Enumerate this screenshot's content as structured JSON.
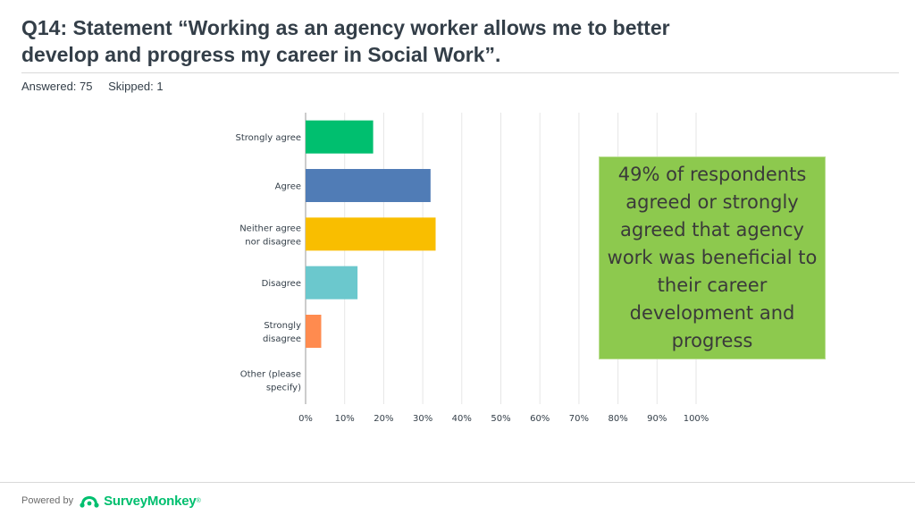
{
  "header": {
    "title_line1": "Q14: Statement “Working as an agency worker allows me to better",
    "title_line2": "develop and progress my career in Social Work”.",
    "answered": "Answered: 75",
    "skipped": "Skipped: 1"
  },
  "chart_data": {
    "type": "bar",
    "orientation": "horizontal",
    "categories": [
      [
        "Strongly agree"
      ],
      [
        "Agree"
      ],
      [
        "Neither agree",
        "nor disagree"
      ],
      [
        "Disagree"
      ],
      [
        "Strongly",
        "disagree"
      ],
      [
        "Other (please",
        "specify)"
      ]
    ],
    "values": [
      17.3,
      32,
      33.3,
      13.3,
      4,
      0
    ],
    "colors": [
      "#00bf6f",
      "#507cb6",
      "#f9be00",
      "#6bc8cd",
      "#ff8b4f",
      "#7d5e90"
    ],
    "x_ticks": [
      "0%",
      "10%",
      "20%",
      "30%",
      "40%",
      "50%",
      "60%",
      "70%",
      "80%",
      "90%",
      "100%"
    ],
    "xlim": [
      0,
      100
    ],
    "grid": true
  },
  "callout": {
    "text": "49% of respondents agreed or strongly agreed that agency work was beneficial to their career development and progress",
    "color": "#8dc94e"
  },
  "footer": {
    "powered_by": "Powered by",
    "brand": "SurveyMonkey",
    "tm": "®",
    "brand_color": "#00bf6f"
  }
}
